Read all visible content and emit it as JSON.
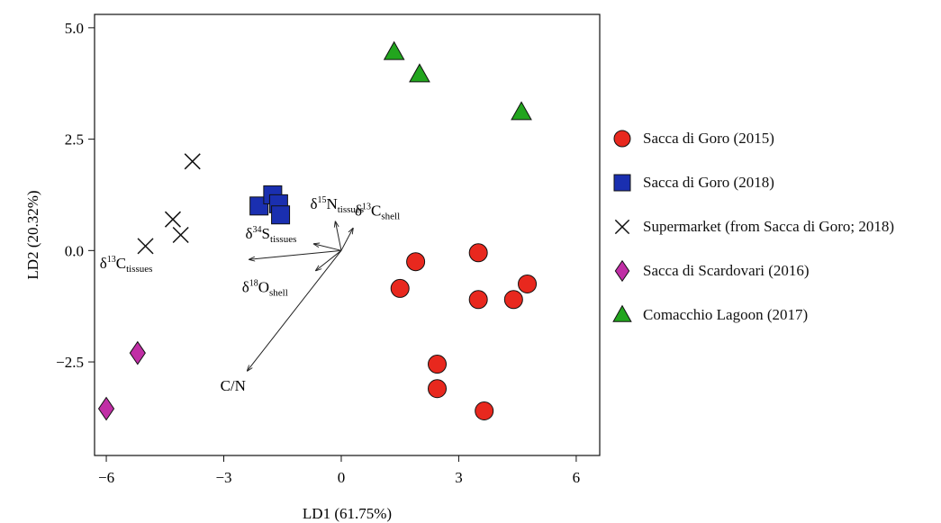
{
  "chart_data": {
    "type": "scatter",
    "xlabel": "LD1 (61.75%)",
    "ylabel": "LD2 (20.32%)",
    "xlim": [
      -6.3,
      6.6
    ],
    "ylim": [
      -4.6,
      5.3
    ],
    "xticks": [
      -6,
      -3,
      0,
      3,
      6
    ],
    "yticks": [
      5.0,
      2.5,
      0.0,
      -2.5
    ],
    "xtick_labels": [
      "−6",
      "−3",
      "0",
      "3",
      "6"
    ],
    "ytick_labels": [
      "5.0",
      "2.5",
      "0.0",
      "−2.5"
    ],
    "grid": false,
    "legend_position": "right",
    "series": [
      {
        "name": "Sacca di Goro (2015)",
        "marker": "circle",
        "color": "#e8281e",
        "points": [
          [
            1.9,
            -0.25
          ],
          [
            1.5,
            -0.85
          ],
          [
            3.5,
            -0.05
          ],
          [
            3.5,
            -1.1
          ],
          [
            4.4,
            -1.1
          ],
          [
            4.75,
            -0.75
          ],
          [
            2.45,
            -2.55
          ],
          [
            2.45,
            -3.1
          ],
          [
            3.65,
            -3.6
          ]
        ]
      },
      {
        "name": "Sacca di Goro (2018)",
        "marker": "square",
        "color": "#1a2fb0",
        "points": [
          [
            -2.1,
            1.0
          ],
          [
            -1.75,
            1.25
          ],
          [
            -1.6,
            1.05
          ],
          [
            -1.55,
            0.8
          ]
        ]
      },
      {
        "name": "Supermarket (from Sacca di Goro; 2018)",
        "marker": "x",
        "color": "#111111",
        "points": [
          [
            -3.8,
            2.0
          ],
          [
            -4.3,
            0.7
          ],
          [
            -4.1,
            0.35
          ],
          [
            -5.0,
            0.1
          ]
        ]
      },
      {
        "name": "Sacca di Scardovari  (2016)",
        "marker": "diamond",
        "color": "#c02ea5",
        "points": [
          [
            -5.2,
            -2.3
          ],
          [
            -6.0,
            -3.55
          ]
        ]
      },
      {
        "name": "Comacchio Lagoon (2017)",
        "marker": "triangle",
        "color": "#22a51e",
        "points": [
          [
            1.35,
            4.45
          ],
          [
            2.0,
            3.95
          ],
          [
            4.6,
            3.1
          ]
        ]
      }
    ],
    "vectors": [
      {
        "label_base": "δ",
        "label_sup": "15",
        "label_main": "N",
        "label_sub": "tissues",
        "dx": -0.15,
        "dy": 0.65
      },
      {
        "label_base": "δ",
        "label_sup": "13",
        "label_main": "C",
        "label_sub": "shell",
        "dx": 0.3,
        "dy": 0.5
      },
      {
        "label_base": "δ",
        "label_sup": "34",
        "label_main": "S",
        "label_sub": "tissues",
        "dx": -0.7,
        "dy": 0.15
      },
      {
        "label_base": "δ",
        "label_sup": "13",
        "label_main": "C",
        "label_sub": "tissues",
        "dx": -2.35,
        "dy": -0.2
      },
      {
        "label_base": "δ",
        "label_sup": "18",
        "label_main": "O",
        "label_sub": "shell",
        "dx": -0.65,
        "dy": -0.45
      },
      {
        "label_base": "",
        "label_sup": "",
        "label_main": "C/N",
        "label_sub": "",
        "dx": -2.4,
        "dy": -2.7
      }
    ]
  }
}
